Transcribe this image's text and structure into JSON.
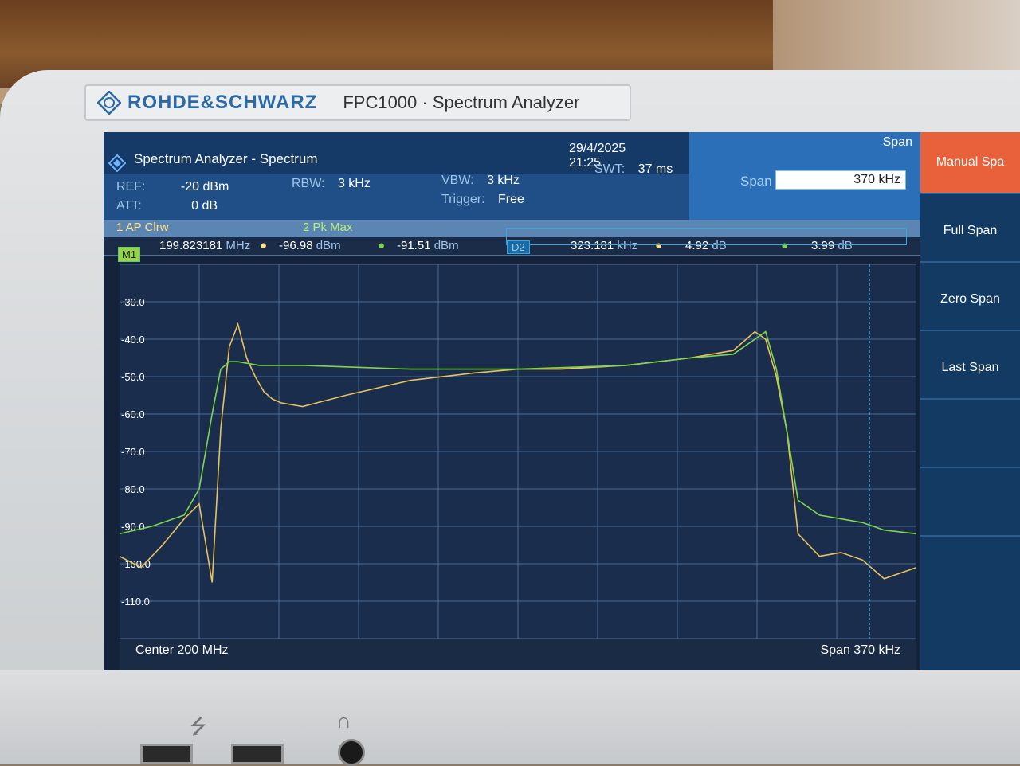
{
  "device": {
    "brand": "ROHDE&SCHWARZ",
    "model": "FPC1000 · Spectrum Analyzer"
  },
  "header": {
    "title": "Spectrum Analyzer - Spectrum",
    "date": "29/4/2025",
    "time": "21:25",
    "ref_label": "REF:",
    "ref_value": "-20 dBm",
    "att_label": "ATT:",
    "att_value": "0 dB",
    "rbw_label": "RBW:",
    "rbw_value": "3 kHz",
    "vbw_label": "VBW:",
    "vbw_value": "3 kHz",
    "swt_label": "SWT:",
    "swt_value": "37 ms",
    "trigger_label": "Trigger:",
    "trigger_value": "Free"
  },
  "span_panel": {
    "title": "Span",
    "label": "Span",
    "value": "370 kHz"
  },
  "traces": {
    "t1": "1 AP  Clrw",
    "t2": "2 Pk  Max"
  },
  "markers": {
    "m1_tag": "M1",
    "m1_freq": "199.823181",
    "m1_freq_unit": "MHz",
    "m1_level1": "-96.98",
    "m1_level1_unit": "dBm",
    "m1_level2": "-91.51",
    "m1_level2_unit": "dBm",
    "d2_tag": "D2",
    "d2_freq": "323.181",
    "d2_freq_unit": "kHz",
    "d2_delta1": "4.92",
    "d2_delta1_unit": "dB",
    "d2_delta2": "3.99",
    "d2_delta2_unit": "dB"
  },
  "status": {
    "center": "Center 200 MHz",
    "span": "Span 370 kHz"
  },
  "softkeys": [
    {
      "label": "Manual Spa"
    },
    {
      "label": "Full Span"
    },
    {
      "label": "Zero Span"
    },
    {
      "label": "Last Span"
    },
    {
      "label": ""
    },
    {
      "label": ""
    }
  ],
  "chart_data": {
    "type": "line",
    "xlim": [
      199.815,
      200.185
    ],
    "ylim": [
      -120,
      -20
    ],
    "yticks": [
      "-30.0",
      "-40.0",
      "-50.0",
      "-60.0",
      "-70.0",
      "-80.0",
      "-90.0",
      "-100.0",
      "-110.0"
    ],
    "grid": true,
    "colors": {
      "trace1": "#e8c25a",
      "trace2": "#7fd64a",
      "grid": "#4a6b96",
      "marker": "#35b8e8"
    },
    "series": [
      {
        "name": "1 AP Clrw",
        "x": [
          199.815,
          199.825,
          199.835,
          199.845,
          199.852,
          199.858,
          199.862,
          199.866,
          199.87,
          199.874,
          199.878,
          199.882,
          199.886,
          199.89,
          199.9,
          199.92,
          199.95,
          199.98,
          200.0,
          200.02,
          200.05,
          200.08,
          200.1,
          200.11,
          200.115,
          200.12,
          200.125,
          200.13,
          200.14,
          200.15,
          200.16,
          200.17,
          200.185
        ],
        "y": [
          -98,
          -101,
          -95,
          -88,
          -84,
          -105,
          -64,
          -42,
          -36,
          -45,
          -50,
          -54,
          -56,
          -57,
          -58,
          -55,
          -51,
          -49,
          -48,
          -48,
          -47,
          -45,
          -43,
          -38,
          -40,
          -50,
          -65,
          -92,
          -98,
          -97,
          -99,
          -104,
          -101
        ]
      },
      {
        "name": "2 Pk Max",
        "x": [
          199.815,
          199.83,
          199.845,
          199.852,
          199.858,
          199.862,
          199.866,
          199.87,
          199.88,
          199.9,
          199.95,
          200.0,
          200.05,
          200.08,
          200.1,
          200.11,
          200.115,
          200.12,
          200.125,
          200.13,
          200.14,
          200.15,
          200.16,
          200.17,
          200.185
        ],
        "y": [
          -92,
          -90,
          -87,
          -80,
          -60,
          -48,
          -46,
          -46,
          -47,
          -47,
          -48,
          -48,
          -47,
          -45,
          -44,
          -40,
          -38,
          -48,
          -65,
          -83,
          -87,
          -88,
          -89,
          -91,
          -92
        ]
      }
    ]
  }
}
